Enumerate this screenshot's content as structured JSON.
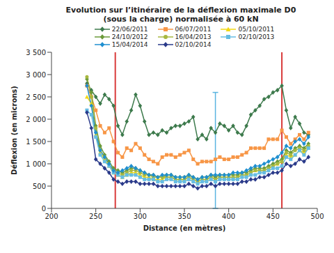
{
  "chart_data": {
    "type": "line",
    "title": "Evolution sur l’itinéraire de la déflexion maximale D0\n(sous la charge) normalisée à 60 kN",
    "x_label": "Distance (en mètres)",
    "y_label": "Déflexion (en microns)",
    "x": [
      240,
      245,
      250,
      255,
      260,
      265,
      270,
      275,
      280,
      285,
      290,
      295,
      300,
      305,
      310,
      315,
      320,
      325,
      330,
      335,
      340,
      345,
      350,
      355,
      360,
      365,
      370,
      375,
      380,
      385,
      390,
      395,
      400,
      405,
      410,
      415,
      420,
      425,
      430,
      435,
      440,
      445,
      450,
      455,
      460,
      465,
      470,
      475,
      480,
      485,
      490
    ],
    "series": [
      {
        "name": "22/06/2011",
        "color": "#3d7a4c",
        "marker": "diamond",
        "values": [
          2800,
          2650,
          2500,
          2350,
          2550,
          2450,
          2300,
          1850,
          1650,
          1950,
          2200,
          2550,
          2300,
          1950,
          1650,
          1700,
          1650,
          1750,
          1700,
          1800,
          1850,
          1850,
          1900,
          1950,
          2050,
          1550,
          1650,
          1550,
          1800,
          1700,
          1900,
          1850,
          1750,
          1850,
          1700,
          1650,
          1850,
          2100,
          2200,
          2300,
          2450,
          2500,
          2600,
          2650,
          2750,
          2200,
          1800,
          2050,
          1900,
          1700,
          1650
        ]
      },
      {
        "name": "06/07/2011",
        "color": "#f79646",
        "marker": "square",
        "values": [
          2750,
          2500,
          2200,
          1850,
          1700,
          1800,
          1500,
          1250,
          1150,
          1350,
          1300,
          1450,
          1350,
          1200,
          1100,
          1050,
          1000,
          1150,
          1200,
          1200,
          1150,
          1200,
          1250,
          1300,
          1100,
          1000,
          1050,
          1050,
          1050,
          1100,
          1150,
          1100,
          1100,
          1150,
          1150,
          1200,
          1250,
          1350,
          1350,
          1350,
          1350,
          1550,
          1550,
          1550,
          1750,
          1600,
          1450,
          1550,
          1650,
          1550,
          1700
        ]
      },
      {
        "name": "05/10/2011",
        "color": "#f2d813",
        "marker": "triangle",
        "values": [
          2500,
          2350,
          1650,
          1250,
          1100,
          950,
          800,
          750,
          700,
          750,
          800,
          800,
          750,
          700,
          700,
          650,
          650,
          650,
          700,
          700,
          650,
          650,
          650,
          700,
          650,
          600,
          650,
          650,
          700,
          650,
          700,
          700,
          700,
          700,
          700,
          750,
          750,
          800,
          850,
          850,
          850,
          900,
          950,
          1000,
          1050,
          1200,
          1150,
          1200,
          1300,
          1250,
          1350
        ]
      },
      {
        "name": "24/10/2012",
        "color": "#6b9a3a",
        "marker": "diamond",
        "values": [
          2900,
          2600,
          1850,
          1400,
          1200,
          1050,
          900,
          850,
          800,
          850,
          900,
          900,
          850,
          800,
          750,
          750,
          700,
          700,
          750,
          750,
          700,
          700,
          700,
          750,
          700,
          650,
          700,
          700,
          750,
          700,
          750,
          750,
          750,
          750,
          750,
          800,
          800,
          850,
          900,
          900,
          900,
          950,
          1000,
          1050,
          1100,
          1300,
          1250,
          1350,
          1400,
          1350,
          1450
        ]
      },
      {
        "name": "16/04/2013",
        "color": "#a8b840",
        "marker": "circle",
        "values": [
          2950,
          2500,
          1800,
          1300,
          1150,
          1000,
          850,
          800,
          750,
          800,
          850,
          850,
          800,
          750,
          750,
          700,
          700,
          700,
          700,
          700,
          650,
          650,
          650,
          700,
          650,
          600,
          650,
          650,
          700,
          650,
          700,
          700,
          700,
          700,
          700,
          750,
          750,
          800,
          850,
          850,
          850,
          900,
          950,
          1000,
          1050,
          1250,
          1200,
          1300,
          1350,
          1300,
          1400
        ]
      },
      {
        "name": "02/10/2013",
        "color": "#66bde3",
        "marker": "square",
        "values": [
          2200,
          2100,
          1600,
          1200,
          1050,
          950,
          800,
          750,
          700,
          750,
          750,
          750,
          700,
          650,
          650,
          650,
          600,
          600,
          650,
          650,
          600,
          600,
          600,
          650,
          600,
          550,
          600,
          600,
          650,
          600,
          650,
          650,
          650,
          650,
          650,
          700,
          700,
          750,
          750,
          800,
          800,
          850,
          900,
          900,
          950,
          1150,
          1100,
          1200,
          1300,
          1200,
          1350
        ]
      },
      {
        "name": "15/04/2014",
        "color": "#1f8fd0",
        "marker": "diamond",
        "values": [
          2750,
          2300,
          1700,
          1300,
          1150,
          1000,
          850,
          800,
          850,
          900,
          950,
          900,
          850,
          800,
          750,
          750,
          700,
          750,
          750,
          750,
          700,
          700,
          700,
          750,
          700,
          650,
          700,
          700,
          750,
          750,
          750,
          750,
          750,
          800,
          800,
          800,
          850,
          900,
          950,
          950,
          1000,
          1050,
          1100,
          1150,
          1250,
          1400,
          1350,
          1500,
          1550,
          1450,
          1600
        ]
      },
      {
        "name": "02/10/2014",
        "color": "#2a3a8a",
        "marker": "diamond",
        "values": [
          2150,
          1800,
          1100,
          1000,
          900,
          800,
          650,
          600,
          550,
          600,
          600,
          600,
          550,
          550,
          550,
          550,
          500,
          500,
          500,
          500,
          500,
          500,
          500,
          550,
          500,
          450,
          500,
          500,
          550,
          500,
          550,
          550,
          550,
          550,
          550,
          600,
          600,
          650,
          650,
          700,
          700,
          750,
          800,
          800,
          850,
          1000,
          950,
          1000,
          1100,
          1050,
          1150
        ]
      }
    ],
    "xlim": [
      200,
      500
    ],
    "xticks": [
      200,
      250,
      300,
      350,
      400,
      450,
      500
    ],
    "ylim": [
      0,
      3500
    ],
    "yticks": [
      0,
      500,
      {
        "value": 1000,
        "label": "1 000"
      },
      {
        "value": 1500,
        "label": "1 500"
      },
      {
        "value": 2000,
        "label": "2 000"
      },
      {
        "value": 2500,
        "label": "2 500"
      },
      {
        "value": 3000,
        "label": "3 000"
      },
      {
        "value": 3500,
        "label": "3 500"
      }
    ],
    "grid": false,
    "vertical_lines": [
      {
        "x": 272,
        "color": "#d93a3a"
      },
      {
        "x": 460,
        "color": "#d93a3a"
      }
    ],
    "range_marker": {
      "x": 385,
      "y": [
        0,
        2600
      ],
      "color": "#5ab4e0"
    }
  }
}
